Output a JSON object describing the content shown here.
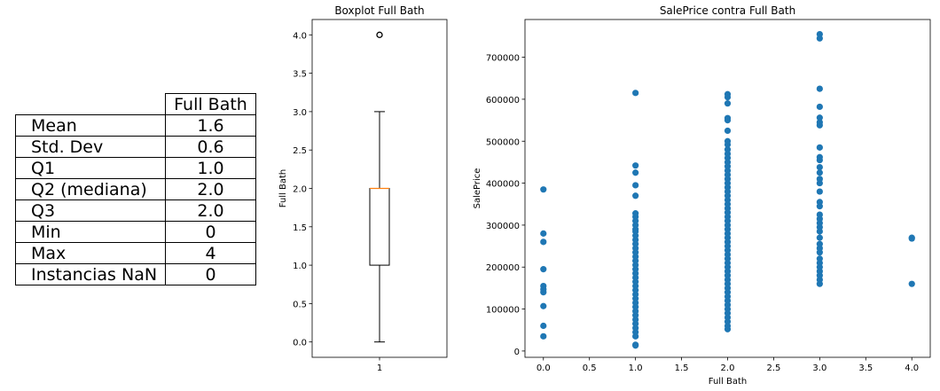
{
  "table": {
    "header": "Full Bath",
    "rows": [
      {
        "label": "Mean",
        "value": "1.6"
      },
      {
        "label": "Std. Dev",
        "value": "0.6"
      },
      {
        "label": "Q1",
        "value": "1.0"
      },
      {
        "label": "Q2 (mediana)",
        "value": "2.0"
      },
      {
        "label": "Q3",
        "value": "2.0"
      },
      {
        "label": "Min",
        "value": "0"
      },
      {
        "label": "Max",
        "value": "4"
      },
      {
        "label": "Instancias NaN",
        "value": "0"
      }
    ]
  },
  "chart_data": [
    {
      "type": "boxplot",
      "title": "Boxplot Full Bath",
      "xlabel": "",
      "ylabel": "Full Bath",
      "categories": [
        "1"
      ],
      "ylim": [
        -0.2,
        4.2
      ],
      "yticks": [
        "0.0",
        "0.5",
        "1.0",
        "1.5",
        "2.0",
        "2.5",
        "3.0",
        "3.5",
        "4.0"
      ],
      "box": {
        "whisker_low": 0,
        "q1": 1,
        "median": 2,
        "q3": 2,
        "whisker_high": 3,
        "outliers": [
          4
        ]
      },
      "colors": {
        "median": "#ff7f0e",
        "box": "#000000"
      },
      "grid": false
    },
    {
      "type": "scatter",
      "title": "SalePrice contra Full Bath",
      "xlabel": "Full Bath",
      "ylabel": "SalePrice",
      "xlim": [
        -0.2,
        4.2
      ],
      "ylim": [
        -15000,
        790000
      ],
      "xticks": [
        "0.0",
        "0.5",
        "1.0",
        "1.5",
        "2.0",
        "2.5",
        "3.0",
        "3.5",
        "4.0"
      ],
      "yticks": [
        "0",
        "100000",
        "200000",
        "300000",
        "400000",
        "500000",
        "600000",
        "700000"
      ],
      "color": "#1f77b4",
      "grid": false,
      "points": [
        {
          "x": 0,
          "y": 35000
        },
        {
          "x": 0,
          "y": 60000
        },
        {
          "x": 0,
          "y": 107000
        },
        {
          "x": 0,
          "y": 140000
        },
        {
          "x": 0,
          "y": 147000
        },
        {
          "x": 0,
          "y": 155000
        },
        {
          "x": 0,
          "y": 195000
        },
        {
          "x": 0,
          "y": 260000
        },
        {
          "x": 0,
          "y": 280000
        },
        {
          "x": 0,
          "y": 385000
        },
        {
          "x": 1,
          "y": 13000
        },
        {
          "x": 1,
          "y": 15000
        },
        {
          "x": 1,
          "y": 35000
        },
        {
          "x": 1,
          "y": 45000
        },
        {
          "x": 1,
          "y": 55000
        },
        {
          "x": 1,
          "y": 65000
        },
        {
          "x": 1,
          "y": 75000
        },
        {
          "x": 1,
          "y": 85000
        },
        {
          "x": 1,
          "y": 95000
        },
        {
          "x": 1,
          "y": 105000
        },
        {
          "x": 1,
          "y": 115000
        },
        {
          "x": 1,
          "y": 125000
        },
        {
          "x": 1,
          "y": 135000
        },
        {
          "x": 1,
          "y": 145000
        },
        {
          "x": 1,
          "y": 155000
        },
        {
          "x": 1,
          "y": 165000
        },
        {
          "x": 1,
          "y": 175000
        },
        {
          "x": 1,
          "y": 185000
        },
        {
          "x": 1,
          "y": 195000
        },
        {
          "x": 1,
          "y": 205000
        },
        {
          "x": 1,
          "y": 215000
        },
        {
          "x": 1,
          "y": 225000
        },
        {
          "x": 1,
          "y": 235000
        },
        {
          "x": 1,
          "y": 245000
        },
        {
          "x": 1,
          "y": 255000
        },
        {
          "x": 1,
          "y": 265000
        },
        {
          "x": 1,
          "y": 275000
        },
        {
          "x": 1,
          "y": 285000
        },
        {
          "x": 1,
          "y": 290000
        },
        {
          "x": 1,
          "y": 300000
        },
        {
          "x": 1,
          "y": 310000
        },
        {
          "x": 1,
          "y": 320000
        },
        {
          "x": 1,
          "y": 328000
        },
        {
          "x": 1,
          "y": 370000
        },
        {
          "x": 1,
          "y": 395000
        },
        {
          "x": 1,
          "y": 425000
        },
        {
          "x": 1,
          "y": 442000
        },
        {
          "x": 1,
          "y": 615000
        },
        {
          "x": 2,
          "y": 52000
        },
        {
          "x": 2,
          "y": 60000
        },
        {
          "x": 2,
          "y": 70000
        },
        {
          "x": 2,
          "y": 80000
        },
        {
          "x": 2,
          "y": 90000
        },
        {
          "x": 2,
          "y": 100000
        },
        {
          "x": 2,
          "y": 110000
        },
        {
          "x": 2,
          "y": 120000
        },
        {
          "x": 2,
          "y": 130000
        },
        {
          "x": 2,
          "y": 140000
        },
        {
          "x": 2,
          "y": 150000
        },
        {
          "x": 2,
          "y": 160000
        },
        {
          "x": 2,
          "y": 170000
        },
        {
          "x": 2,
          "y": 180000
        },
        {
          "x": 2,
          "y": 190000
        },
        {
          "x": 2,
          "y": 200000
        },
        {
          "x": 2,
          "y": 210000
        },
        {
          "x": 2,
          "y": 220000
        },
        {
          "x": 2,
          "y": 230000
        },
        {
          "x": 2,
          "y": 240000
        },
        {
          "x": 2,
          "y": 250000
        },
        {
          "x": 2,
          "y": 260000
        },
        {
          "x": 2,
          "y": 270000
        },
        {
          "x": 2,
          "y": 280000
        },
        {
          "x": 2,
          "y": 290000
        },
        {
          "x": 2,
          "y": 300000
        },
        {
          "x": 2,
          "y": 310000
        },
        {
          "x": 2,
          "y": 320000
        },
        {
          "x": 2,
          "y": 330000
        },
        {
          "x": 2,
          "y": 340000
        },
        {
          "x": 2,
          "y": 350000
        },
        {
          "x": 2,
          "y": 360000
        },
        {
          "x": 2,
          "y": 370000
        },
        {
          "x": 2,
          "y": 380000
        },
        {
          "x": 2,
          "y": 390000
        },
        {
          "x": 2,
          "y": 400000
        },
        {
          "x": 2,
          "y": 410000
        },
        {
          "x": 2,
          "y": 420000
        },
        {
          "x": 2,
          "y": 430000
        },
        {
          "x": 2,
          "y": 440000
        },
        {
          "x": 2,
          "y": 450000
        },
        {
          "x": 2,
          "y": 460000
        },
        {
          "x": 2,
          "y": 470000
        },
        {
          "x": 2,
          "y": 480000
        },
        {
          "x": 2,
          "y": 492000
        },
        {
          "x": 2,
          "y": 500000
        },
        {
          "x": 2,
          "y": 525000
        },
        {
          "x": 2,
          "y": 550000
        },
        {
          "x": 2,
          "y": 555000
        },
        {
          "x": 2,
          "y": 590000
        },
        {
          "x": 2,
          "y": 605000
        },
        {
          "x": 2,
          "y": 612000
        },
        {
          "x": 3,
          "y": 160000
        },
        {
          "x": 3,
          "y": 170000
        },
        {
          "x": 3,
          "y": 180000
        },
        {
          "x": 3,
          "y": 190000
        },
        {
          "x": 3,
          "y": 200000
        },
        {
          "x": 3,
          "y": 210000
        },
        {
          "x": 3,
          "y": 220000
        },
        {
          "x": 3,
          "y": 235000
        },
        {
          "x": 3,
          "y": 245000
        },
        {
          "x": 3,
          "y": 255000
        },
        {
          "x": 3,
          "y": 270000
        },
        {
          "x": 3,
          "y": 285000
        },
        {
          "x": 3,
          "y": 295000
        },
        {
          "x": 3,
          "y": 305000
        },
        {
          "x": 3,
          "y": 315000
        },
        {
          "x": 3,
          "y": 325000
        },
        {
          "x": 3,
          "y": 345000
        },
        {
          "x": 3,
          "y": 355000
        },
        {
          "x": 3,
          "y": 380000
        },
        {
          "x": 3,
          "y": 400000
        },
        {
          "x": 3,
          "y": 410000
        },
        {
          "x": 3,
          "y": 425000
        },
        {
          "x": 3,
          "y": 438000
        },
        {
          "x": 3,
          "y": 455000
        },
        {
          "x": 3,
          "y": 462000
        },
        {
          "x": 3,
          "y": 485000
        },
        {
          "x": 3,
          "y": 538000
        },
        {
          "x": 3,
          "y": 545000
        },
        {
          "x": 3,
          "y": 556000
        },
        {
          "x": 3,
          "y": 582000
        },
        {
          "x": 3,
          "y": 625000
        },
        {
          "x": 3,
          "y": 745000
        },
        {
          "x": 3,
          "y": 755000
        },
        {
          "x": 4,
          "y": 160000
        },
        {
          "x": 4,
          "y": 268000
        },
        {
          "x": 4,
          "y": 270000
        }
      ]
    }
  ]
}
